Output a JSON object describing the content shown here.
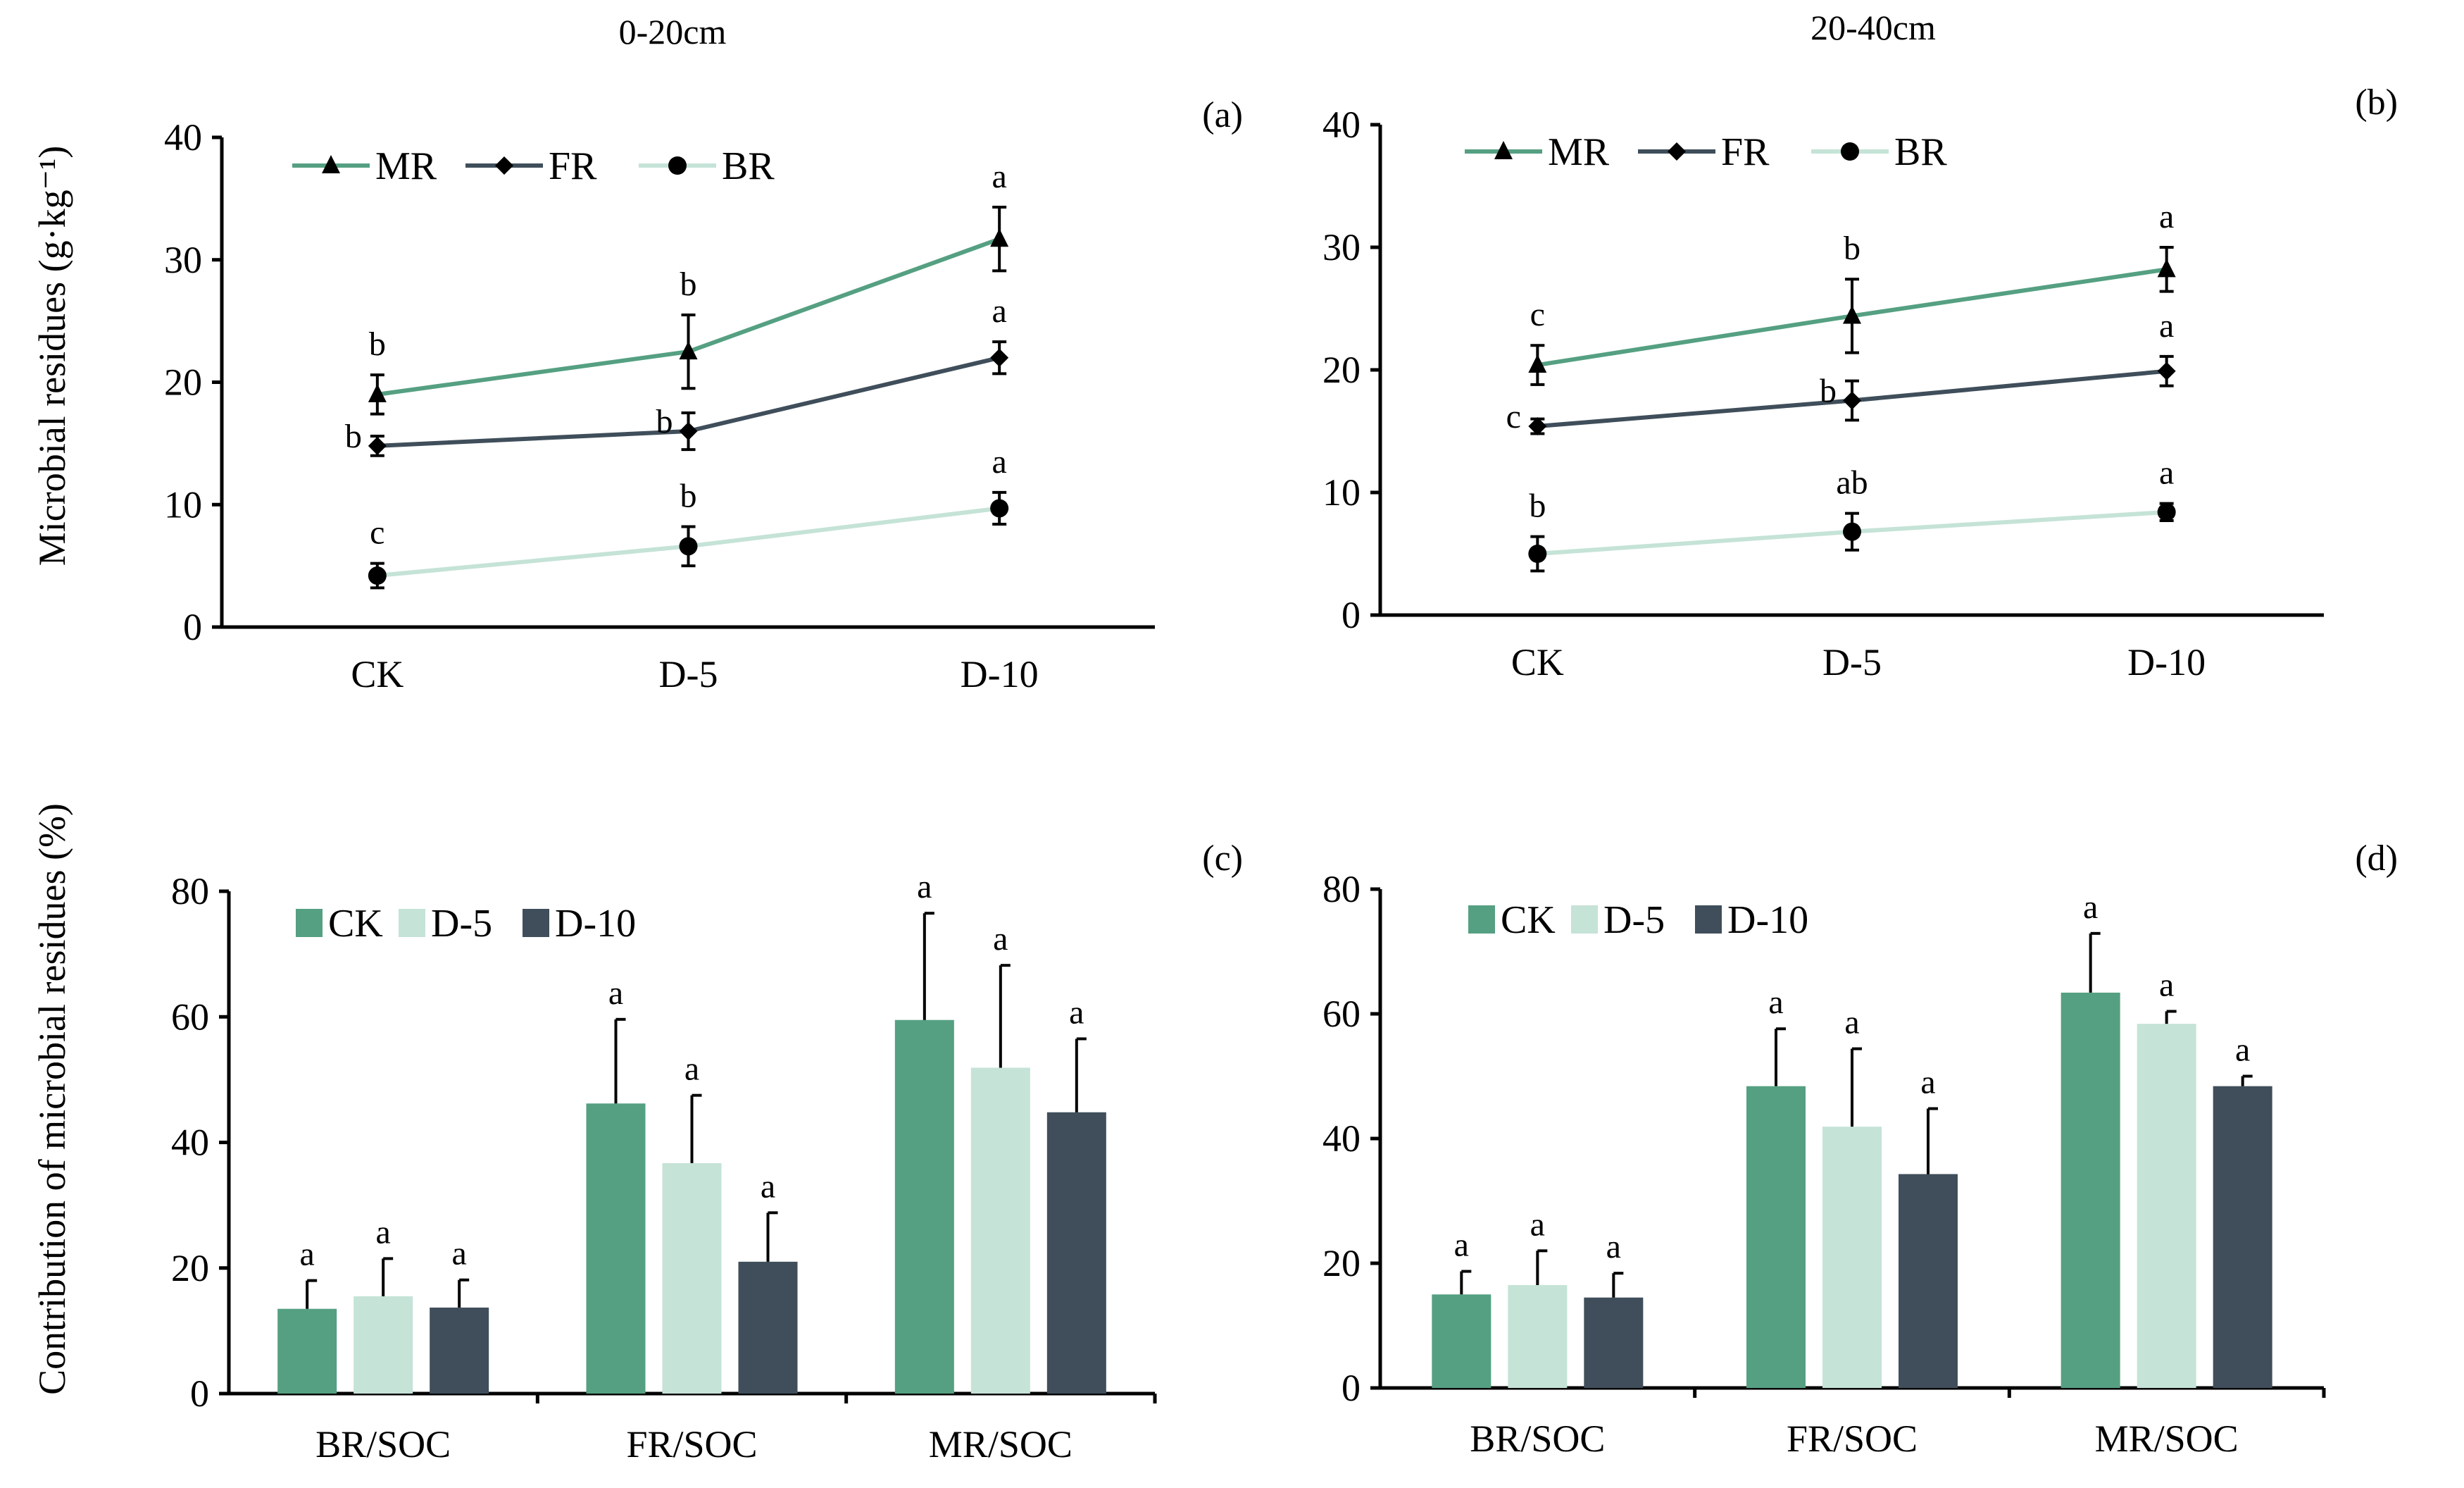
{
  "figure": {
    "depth_titles": [
      "0-20cm",
      "20-40cm"
    ],
    "y_label_top": "Microbial residues (g·kg⁻¹)",
    "y_label_bottom": "Contribution of microbial residues (%)"
  },
  "colors": {
    "MR": "#55a082",
    "FR": "#3f4e5a",
    "BR": "#c5e3d7",
    "CK": "#55a082",
    "D-5": "#c5e3d7",
    "D-10": "#3f4e5a"
  },
  "chart_data": [
    {
      "panel": "(a)",
      "type": "line",
      "categories": [
        "CK",
        "D-5",
        "D-10"
      ],
      "ylim": [
        0,
        40
      ],
      "yticks": [
        0,
        10,
        20,
        30,
        40
      ],
      "series": [
        {
          "name": "MR",
          "marker": "triangle",
          "values": [
            19.0,
            22.5,
            31.7
          ],
          "errors": [
            1.6,
            3.0,
            2.6
          ],
          "letters": [
            "b",
            "b",
            "a"
          ]
        },
        {
          "name": "FR",
          "marker": "diamond",
          "values": [
            14.8,
            16.0,
            22.0
          ],
          "errors": [
            0.8,
            1.5,
            1.3
          ],
          "letters": [
            "b",
            "b",
            "a"
          ]
        },
        {
          "name": "BR",
          "marker": "circle",
          "values": [
            4.2,
            6.6,
            9.7
          ],
          "errors": [
            1.0,
            1.6,
            1.3
          ],
          "letters": [
            "c",
            "b",
            "a"
          ]
        }
      ]
    },
    {
      "panel": "(b)",
      "type": "line",
      "categories": [
        "CK",
        "D-5",
        "D-10"
      ],
      "ylim": [
        0,
        40
      ],
      "yticks": [
        0,
        10,
        20,
        30,
        40
      ],
      "series": [
        {
          "name": "MR",
          "marker": "triangle",
          "values": [
            20.4,
            24.4,
            28.2
          ],
          "errors": [
            1.6,
            3.0,
            1.8
          ],
          "letters": [
            "c",
            "b",
            "a"
          ]
        },
        {
          "name": "FR",
          "marker": "diamond",
          "values": [
            15.4,
            17.5,
            19.9
          ],
          "errors": [
            0.6,
            1.6,
            1.2
          ],
          "letters": [
            "c",
            "b",
            "a"
          ]
        },
        {
          "name": "BR",
          "marker": "circle",
          "values": [
            5.0,
            6.8,
            8.4
          ],
          "errors": [
            1.4,
            1.5,
            0.7
          ],
          "letters": [
            "b",
            "ab",
            "a"
          ]
        }
      ]
    },
    {
      "panel": "(c)",
      "type": "bar",
      "categories": [
        "BR/SOC",
        "FR/SOC",
        "MR/SOC"
      ],
      "ylim": [
        0,
        80
      ],
      "yticks": [
        0,
        20,
        40,
        60,
        80
      ],
      "series": [
        {
          "name": "CK",
          "values": [
            13.5,
            46.2,
            59.5
          ],
          "errors": [
            4.5,
            13.4,
            17.0
          ],
          "letters": [
            "a",
            "a",
            "a"
          ]
        },
        {
          "name": "D-5",
          "values": [
            15.5,
            36.7,
            51.9
          ],
          "errors": [
            6.0,
            10.8,
            16.3
          ],
          "letters": [
            "a",
            "a",
            "a"
          ]
        },
        {
          "name": "D-10",
          "values": [
            13.7,
            21.0,
            44.8
          ],
          "errors": [
            4.4,
            7.8,
            11.7
          ],
          "letters": [
            "a",
            "a",
            "a"
          ]
        }
      ]
    },
    {
      "panel": "(d)",
      "type": "bar",
      "categories": [
        "BR/SOC",
        "FR/SOC",
        "MR/SOC"
      ],
      "ylim": [
        0,
        80
      ],
      "yticks": [
        0,
        20,
        40,
        60,
        80
      ],
      "series": [
        {
          "name": "CK",
          "values": [
            15.0,
            48.4,
            63.4
          ],
          "errors": [
            3.7,
            9.2,
            9.5
          ],
          "letters": [
            "a",
            "a",
            "a"
          ]
        },
        {
          "name": "D-5",
          "values": [
            16.5,
            41.9,
            58.4
          ],
          "errors": [
            5.5,
            12.5,
            2.0
          ],
          "letters": [
            "a",
            "a",
            "a"
          ]
        },
        {
          "name": "D-10",
          "values": [
            14.5,
            34.3,
            48.4
          ],
          "errors": [
            3.9,
            10.5,
            1.6
          ],
          "letters": [
            "a",
            "a",
            "a"
          ]
        }
      ]
    }
  ]
}
